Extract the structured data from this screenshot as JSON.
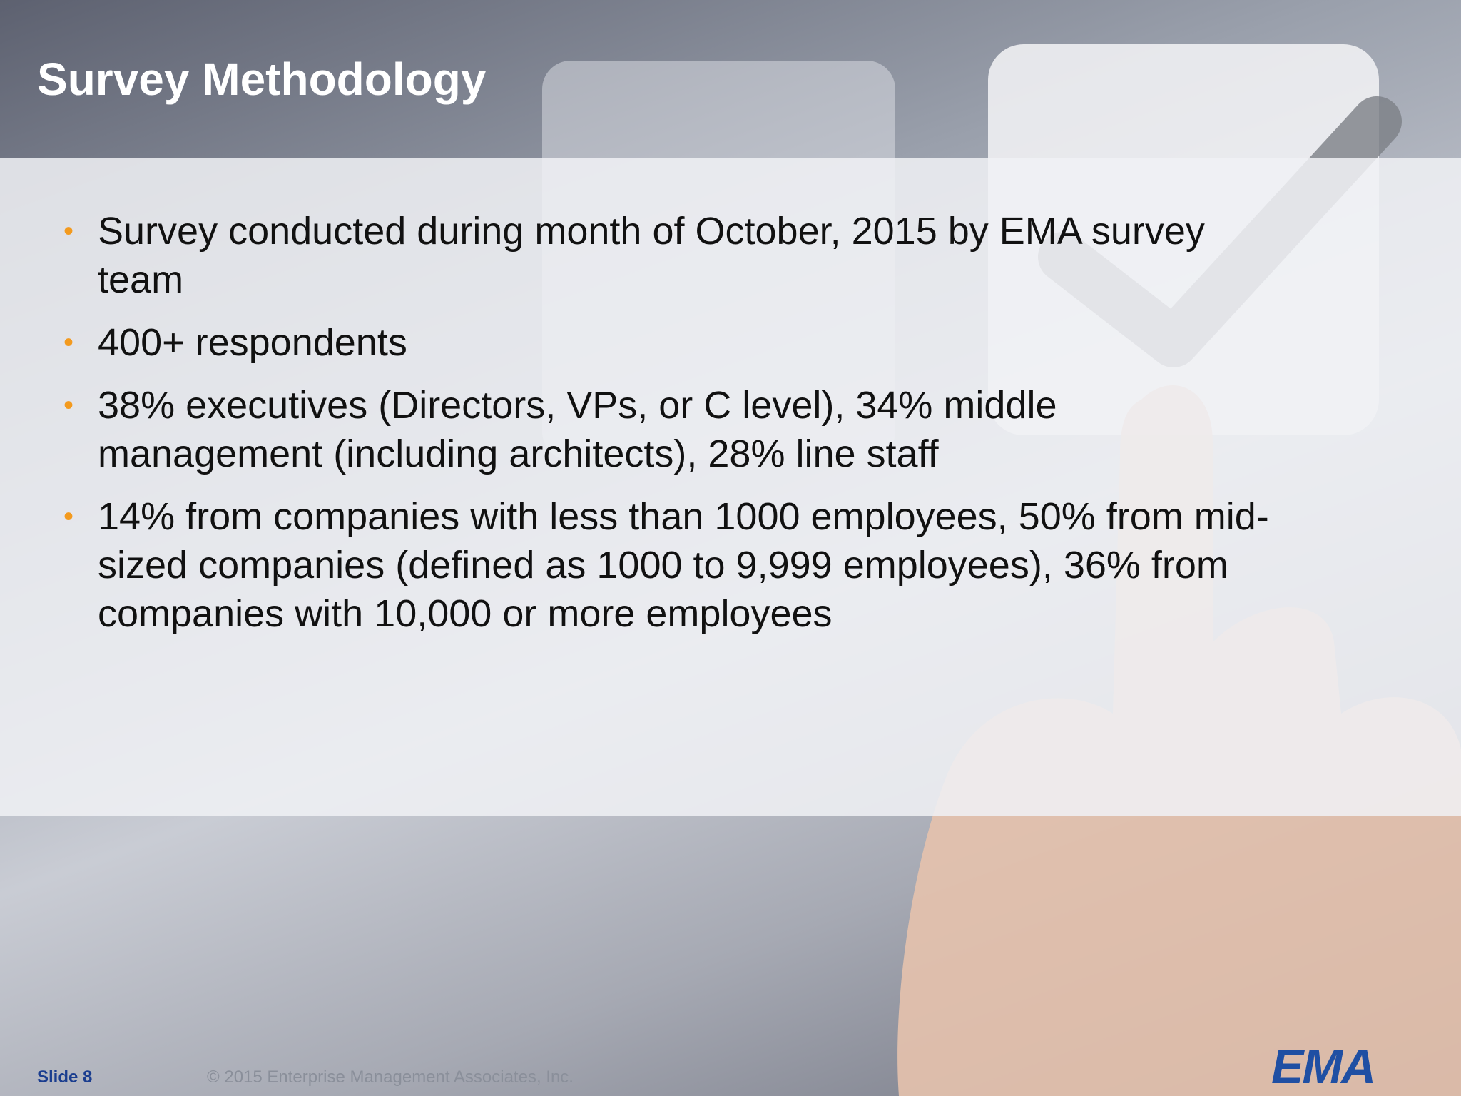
{
  "slide": {
    "title": "Survey Methodology",
    "bullets": [
      "Survey conducted during month of October, 2015 by EMA survey team",
      "400+ respondents",
      "38% executives (Directors, VPs, or C level), 34% middle management (including architects), 28% line staff",
      "14% from companies with less than 1000 employees, 50% from mid-sized companies (defined as 1000 to 9,999 employees), 36% from companies with 10,000 or more employees"
    ],
    "footer": {
      "slide_number": "Slide 8",
      "copyright": "© 2015 Enterprise Management Associates, Inc.",
      "logo": "EMA"
    }
  }
}
